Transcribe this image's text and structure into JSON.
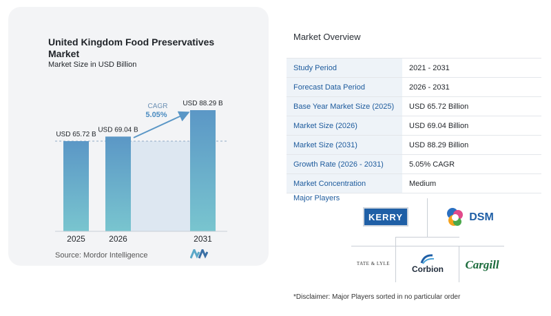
{
  "chart_data": {
    "type": "bar",
    "title": "United Kingdom Food Preservatives Market",
    "subtitle": "Market Size in USD Billion",
    "categories": [
      "2025",
      "2026",
      "2031"
    ],
    "values": [
      65.72,
      69.04,
      88.29
    ],
    "value_labels": [
      "USD 65.72 B",
      "USD 69.04 B",
      "USD 88.29 B"
    ],
    "cagr_label": "CAGR",
    "cagr_value": "5.05%",
    "colors": {
      "bar_top": "#5b97c6",
      "bar_bottom": "#79c5cf",
      "band": "#dde7f1",
      "arrow": "#5b97c6"
    }
  },
  "source": "Source:  Mordor Intelligence",
  "overview": {
    "title": "Market Overview",
    "rows": [
      {
        "label": "Study Period",
        "value": "2021 - 2031"
      },
      {
        "label": "Forecast Data Period",
        "value": "2026 - 2031"
      },
      {
        "label": "Base Year Market Size (2025)",
        "value": "USD 65.72 Billion"
      },
      {
        "label": "Market Size (2026)",
        "value": "USD 69.04 Billion"
      },
      {
        "label": "Market Size (2031)",
        "value": "USD 88.29 Billion"
      },
      {
        "label": "Growth Rate (2026 - 2031)",
        "value": "5.05% CAGR"
      },
      {
        "label": "Market Concentration",
        "value": "Medium"
      }
    ]
  },
  "players": {
    "title": "Major Players",
    "logos": [
      {
        "name": "kerry-logo",
        "text": "KERRY"
      },
      {
        "name": "dsm-logo",
        "text": "DSM"
      },
      {
        "name": "tate-lyle-logo",
        "text": "TATE & LYLE"
      },
      {
        "name": "corbion-logo",
        "text": "Corbion"
      },
      {
        "name": "cargill-logo",
        "text": "Cargill"
      }
    ]
  },
  "disclaimer": "*Disclaimer: Major Players sorted in no particular order"
}
